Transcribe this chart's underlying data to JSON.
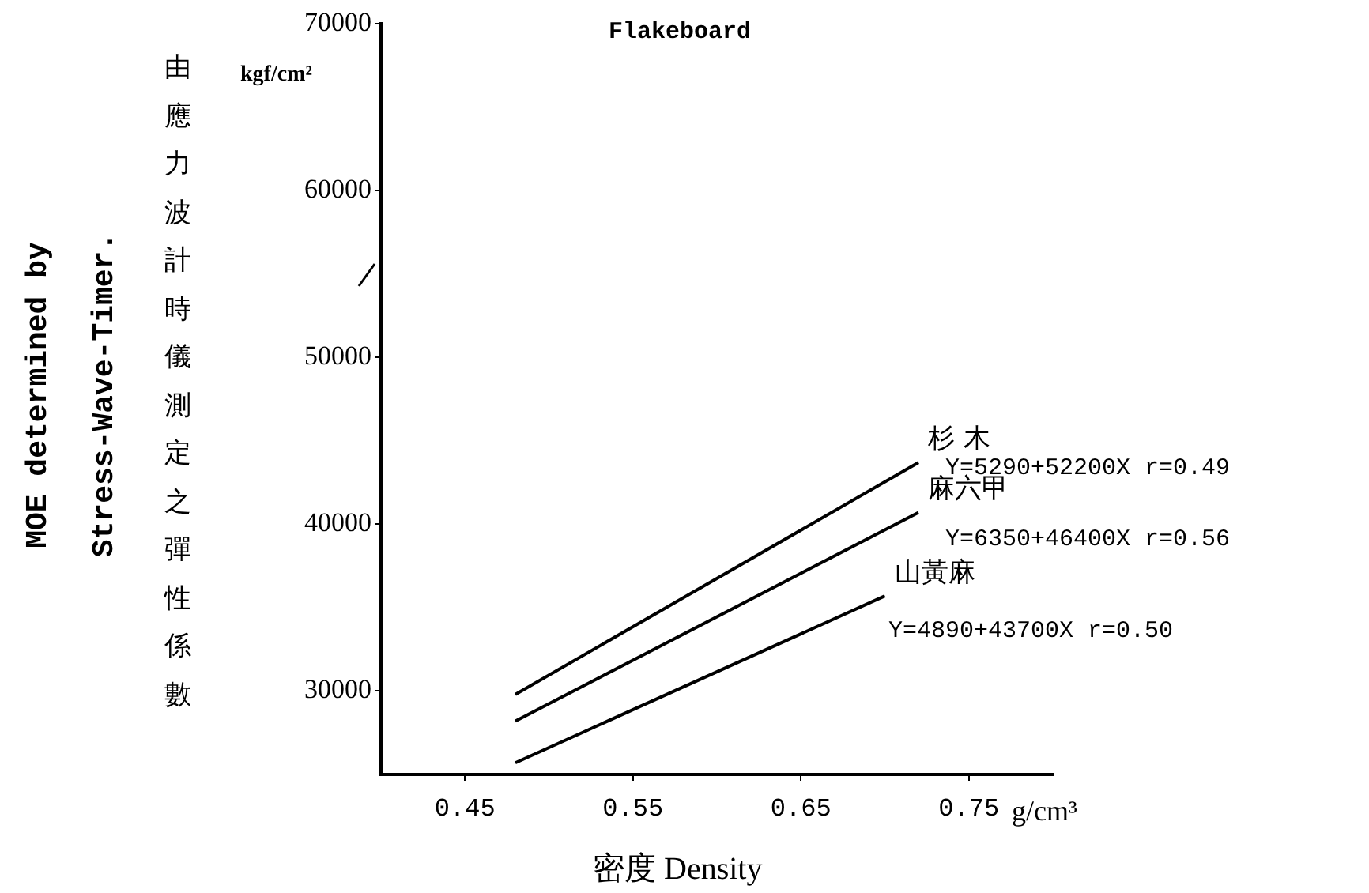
{
  "chart_data": {
    "type": "line",
    "title": "Flakeboard",
    "xlabel": "密度    Density",
    "annotations": [
      "MOE determined by Stress-Wave-Timer.",
      "由應力波計時儀測定之彈性係數",
      "kgf/cm²",
      "g/cm³",
      "Y=5290+52200X  r=0.49",
      "Y=6350+46400X  r=0.56",
      "Y=4890+43700X  r=0.50"
    ],
    "xlim": [
      0.4,
      0.8
    ],
    "xticks": [
      0.45,
      0.55,
      0.65,
      0.75
    ],
    "ylim": [
      25000,
      70000
    ],
    "yticks": [
      30000,
      40000,
      50000,
      60000,
      70000
    ],
    "grid": false,
    "legend": false,
    "marker": "none",
    "line_style": "solid",
    "series": [
      {
        "name": "杉 木",
        "color": "#000000",
        "x": [
          0.48,
          0.72
        ],
        "values": [
          29800,
          43700
        ]
      },
      {
        "name": "麻六甲",
        "color": "#000000",
        "x": [
          0.48,
          0.72
        ],
        "values": [
          28200,
          40700
        ]
      },
      {
        "name": "山黃麻",
        "color": "#000000",
        "x": [
          0.48,
          0.7
        ],
        "values": [
          25700,
          35700
        ]
      }
    ]
  }
}
